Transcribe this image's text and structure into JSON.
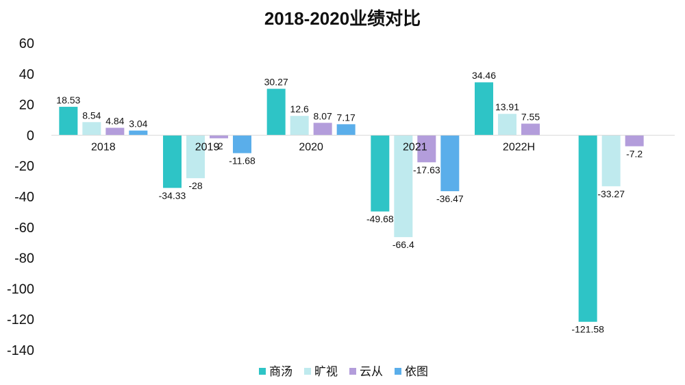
{
  "chart_data": {
    "type": "bar",
    "title": "2018-2020业绩对比",
    "xlabel": "",
    "ylabel": "",
    "categories": [
      "2018",
      "2019",
      "2020",
      "2021",
      "2022H",
      ""
    ],
    "ylim": [
      -140,
      60
    ],
    "yticks": [
      60,
      40,
      20,
      0,
      -20,
      -40,
      -60,
      -80,
      -100,
      -120,
      -140
    ],
    "grid": false,
    "legend_position": "bottom",
    "series": [
      {
        "name": "商汤",
        "color": "#2ec4c6",
        "values": [
          18.53,
          -34.33,
          30.27,
          -49.68,
          34.46,
          -121.58
        ]
      },
      {
        "name": "旷视",
        "color": "#bfeaee",
        "values": [
          8.54,
          -28,
          12.6,
          -66.4,
          13.91,
          -33.27
        ]
      },
      {
        "name": "云从",
        "color": "#b39ddb",
        "values": [
          4.84,
          -2,
          8.07,
          -17.63,
          7.55,
          -7.2
        ]
      },
      {
        "name": "依图",
        "color": "#5aaeea",
        "values": [
          3.04,
          -11.68,
          7.17,
          -36.47,
          null,
          null
        ]
      }
    ]
  }
}
